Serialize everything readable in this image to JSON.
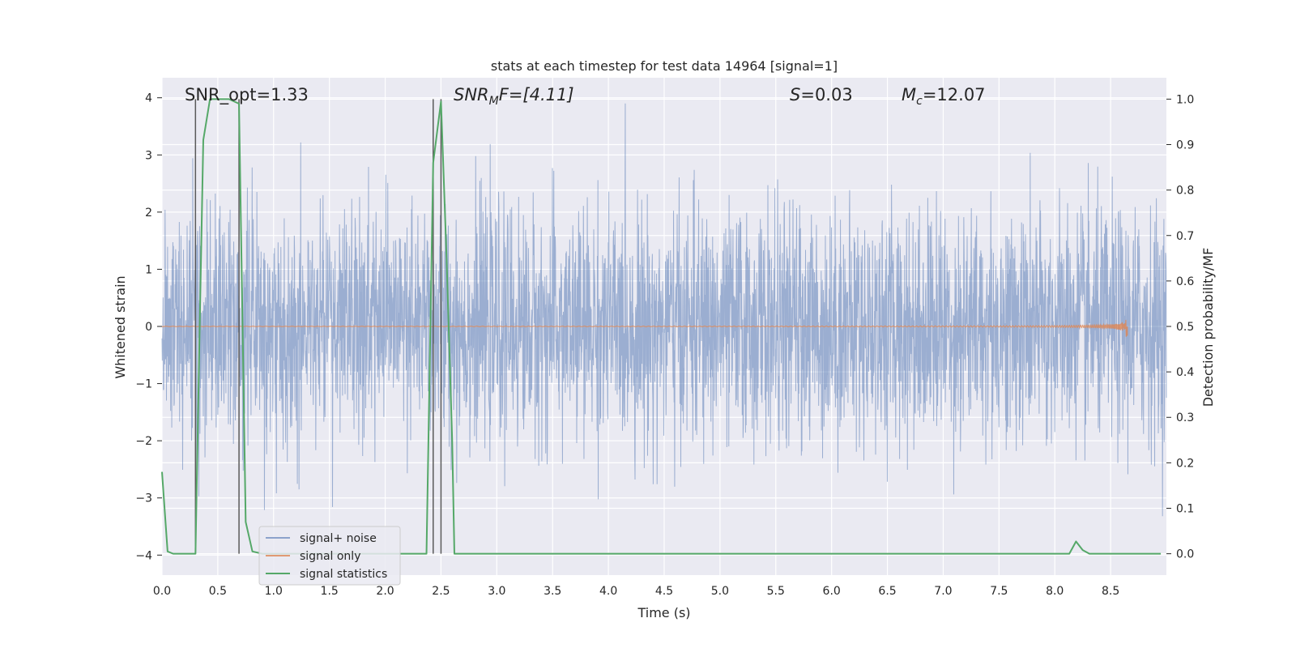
{
  "chart_data": {
    "type": "line",
    "title": "stats at each timestep for test data 14964 [signal=1]",
    "xlabel": "Time (s)",
    "ylabel": "Whitened strain",
    "y2label": "Detection probability/MF",
    "xlim": [
      0.0,
      9.0
    ],
    "ylim": [
      -4.35,
      4.35
    ],
    "y2lim": [
      -0.047,
      1.047
    ],
    "grid": true,
    "legend_position": "lower-left",
    "xticks": [
      0.0,
      0.5,
      1.0,
      1.5,
      2.0,
      2.5,
      3.0,
      3.5,
      4.0,
      4.5,
      5.0,
      5.5,
      6.0,
      6.5,
      7.0,
      7.5,
      8.0,
      8.5
    ],
    "xtick_labels": [
      "0.0",
      "0.5",
      "1.0",
      "1.5",
      "2.0",
      "2.5",
      "3.0",
      "3.5",
      "4.0",
      "4.5",
      "5.0",
      "5.5",
      "6.0",
      "6.5",
      "7.0",
      "7.5",
      "8.0",
      "8.5"
    ],
    "yticks": [
      4,
      3,
      2,
      1,
      0,
      -1,
      -2,
      -3,
      -4
    ],
    "ytick_labels": [
      "4",
      "3",
      "2",
      "1",
      "0",
      "−1",
      "−2",
      "−3",
      "−4"
    ],
    "y2ticks": [
      1.0,
      0.9,
      0.8,
      0.7,
      0.6,
      0.5,
      0.4,
      0.3,
      0.2,
      0.1,
      0.0
    ],
    "y2tick_labels": [
      "1.0",
      "0.9",
      "0.8",
      "0.7",
      "0.6",
      "0.5",
      "0.4",
      "0.3",
      "0.2",
      "0.1",
      "0.0"
    ],
    "annotations": {
      "snr_opt": "SNR_opt=1.33",
      "snr_mf_base": "SNR",
      "snr_mf_sub": "M",
      "snr_mf_rest": "F=[4.11]",
      "s_label": "S",
      "s_value": "=0.03",
      "mc_base": "M",
      "mc_sub": "c",
      "mc_value": "=12.07"
    },
    "series": [
      {
        "name": "signal+ noise",
        "color": "#4c72b0",
        "axis": "left",
        "description_stats": {
          "approx_range": [
            -4.0,
            3.9
          ]
        }
      },
      {
        "name": "signal only",
        "color": "#dd8452",
        "axis": "left",
        "chirp_end_time": 8.65,
        "chirp_peak_amplitude": 0.25
      },
      {
        "name": "signal statistics",
        "color": "#55a868",
        "axis": "right",
        "x": [
          0.0,
          0.05,
          0.1,
          0.3,
          0.33,
          0.37,
          0.43,
          0.5,
          0.6,
          0.69,
          0.75,
          0.81,
          0.9,
          1.0,
          2.0,
          2.3,
          2.37,
          2.43,
          2.5,
          2.55,
          2.6,
          2.62,
          3.0,
          4.0,
          5.0,
          6.0,
          7.0,
          8.0,
          8.13,
          8.19,
          8.25,
          8.31,
          8.4,
          8.95
        ],
        "values": [
          0.18,
          0.005,
          0.0,
          0.0,
          0.4,
          0.91,
          1.0,
          1.0,
          1.0,
          0.99,
          0.07,
          0.005,
          0.0,
          0.0,
          0.0,
          0.0,
          0.0,
          0.86,
          0.995,
          0.65,
          0.25,
          0.0,
          0.0,
          0.0,
          0.0,
          0.0,
          0.0,
          0.0,
          0.0,
          0.027,
          0.008,
          0.0,
          0.0,
          0.0
        ]
      }
    ],
    "vertical_markers": [
      {
        "x": 0.3,
        "y_from": 0.0,
        "y_to": 1.0
      },
      {
        "x": 0.69,
        "y_from": 0.0,
        "y_to": 1.0
      },
      {
        "x": 2.43,
        "y_from": 0.0,
        "y_to": 1.0
      },
      {
        "x": 2.5,
        "y_from": 0.0,
        "y_to": 1.0
      }
    ],
    "marker_color": "#5a5a5a"
  }
}
